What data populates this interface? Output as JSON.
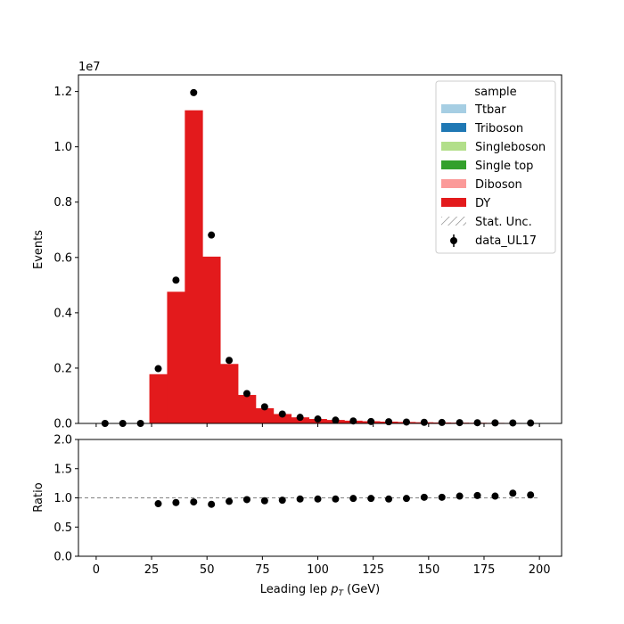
{
  "chart_data": [
    {
      "type": "bar",
      "stacked": true,
      "panel": "main",
      "ylabel": "Events",
      "y_offset_label": "1e7",
      "ylim": [
        0,
        12600000
      ],
      "xlim": [
        -8,
        210
      ],
      "yticks": [
        0,
        2000000,
        4000000,
        6000000,
        8000000,
        10000000,
        12000000
      ],
      "ytick_labels": [
        "0.0",
        "0.2",
        "0.4",
        "0.6",
        "0.8",
        "1.0",
        "1.2"
      ],
      "bin_edges": [
        0,
        8,
        16,
        24,
        32,
        40,
        48,
        56,
        64,
        72,
        80,
        88,
        96,
        104,
        112,
        120,
        128,
        136,
        144,
        152,
        160,
        168,
        176,
        184,
        192,
        200
      ],
      "series": [
        {
          "name": "Ttbar",
          "color": "#a6cee3",
          "values": [
            0,
            0,
            0,
            0,
            0,
            0,
            0,
            0,
            0,
            0,
            0,
            0,
            0,
            0,
            0,
            0,
            0,
            0,
            0,
            0,
            0,
            0,
            0,
            0,
            0
          ]
        },
        {
          "name": "Triboson",
          "color": "#1f78b4",
          "values": [
            0,
            0,
            0,
            0,
            0,
            0,
            0,
            0,
            0,
            0,
            0,
            0,
            0,
            0,
            0,
            0,
            0,
            0,
            0,
            0,
            0,
            0,
            0,
            0,
            0
          ]
        },
        {
          "name": "Singleboson",
          "color": "#b2df8a",
          "values": [
            0,
            0,
            0,
            0,
            0,
            0,
            0,
            0,
            0,
            0,
            0,
            0,
            0,
            0,
            0,
            0,
            0,
            0,
            0,
            0,
            0,
            0,
            0,
            0,
            0
          ]
        },
        {
          "name": "Single top",
          "color": "#33a02c",
          "values": [
            0,
            0,
            0,
            0,
            0,
            0,
            0,
            0,
            0,
            0,
            0,
            0,
            0,
            0,
            0,
            0,
            0,
            0,
            0,
            0,
            0,
            0,
            0,
            0,
            0
          ]
        },
        {
          "name": "Diboson",
          "color": "#fb9a99",
          "values": [
            0,
            0,
            0,
            0,
            0,
            0,
            0,
            0,
            0,
            0,
            0,
            0,
            0,
            0,
            0,
            0,
            0,
            0,
            0,
            0,
            0,
            0,
            0,
            0,
            0
          ]
        },
        {
          "name": "DY",
          "color": "#e31a1c",
          "values": [
            0,
            0,
            0,
            1780000,
            4760000,
            11320000,
            6030000,
            2150000,
            1030000,
            550000,
            340000,
            220000,
            160000,
            125000,
            100000,
            80000,
            65000,
            52000,
            42000,
            34000,
            28000,
            24000,
            20000,
            17000,
            14000
          ]
        }
      ],
      "stat_unc": {
        "name": "Stat. Unc.",
        "color": "#808080"
      },
      "data": {
        "name": "data_UL17",
        "color": "#000000",
        "x": [
          4,
          12,
          20,
          28,
          36,
          44,
          52,
          60,
          68,
          76,
          84,
          92,
          100,
          108,
          116,
          124,
          132,
          140,
          148,
          156,
          164,
          172,
          180,
          188,
          196
        ],
        "y": [
          0,
          0,
          0,
          1980000,
          5180000,
          11960000,
          6810000,
          2280000,
          1080000,
          600000,
          340000,
          220000,
          160000,
          120000,
          90000,
          70000,
          60000,
          50000,
          40000,
          35000,
          30000,
          25000,
          20000,
          18000,
          15000
        ]
      },
      "legend": {
        "title": "sample",
        "position": "top-right"
      }
    },
    {
      "type": "scatter",
      "panel": "ratio",
      "xlabel_prefix": "Leading lep ",
      "xlabel_symbol": "p",
      "xlabel_subscript": "T",
      "xlabel_suffix": " (GeV)",
      "ylabel": "Ratio",
      "xlim": [
        -8,
        210
      ],
      "ylim": [
        0,
        2
      ],
      "xticks": [
        0,
        25,
        50,
        75,
        100,
        125,
        150,
        175,
        200
      ],
      "xtick_labels": [
        "0",
        "25",
        "50",
        "75",
        "100",
        "125",
        "150",
        "175",
        "200"
      ],
      "yticks": [
        0,
        0.5,
        1,
        1.5,
        2
      ],
      "ytick_labels": [
        "0.0",
        "0.5",
        "1.0",
        "1.5",
        "2.0"
      ],
      "reference_line": {
        "y": 1.0,
        "color": "#808080",
        "style": "dashed",
        "xrange": [
          -8,
          200
        ]
      },
      "x": [
        28,
        36,
        44,
        52,
        60,
        68,
        76,
        84,
        92,
        100,
        108,
        116,
        124,
        132,
        140,
        148,
        156,
        164,
        172,
        180,
        188,
        196
      ],
      "y": [
        0.9,
        0.92,
        0.93,
        0.89,
        0.94,
        0.97,
        0.95,
        0.96,
        0.98,
        0.98,
        0.98,
        0.99,
        0.99,
        0.98,
        0.99,
        1.01,
        1.01,
        1.03,
        1.04,
        1.03,
        1.08,
        1.05
      ]
    }
  ]
}
